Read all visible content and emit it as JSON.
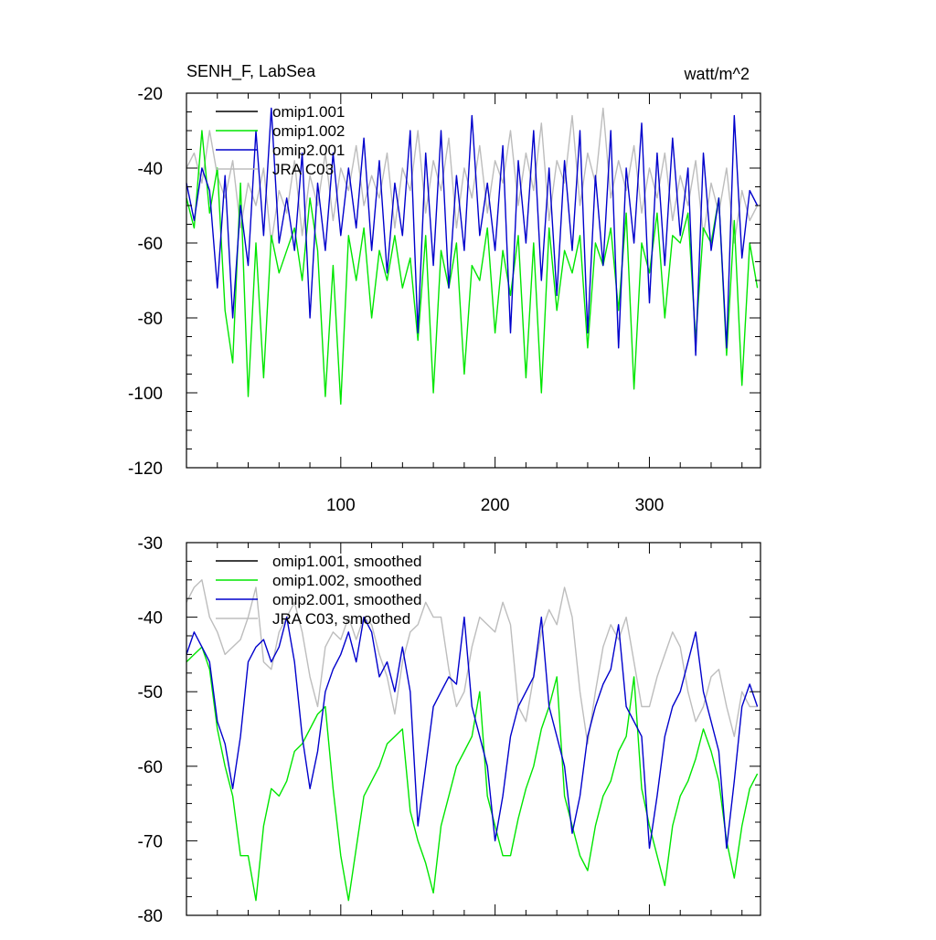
{
  "figure": {
    "title_left": "SENH_F, LabSea",
    "title_right": "watt/m^2"
  },
  "colors": {
    "omip1_001": "#000000",
    "omip1_002": "#00e600",
    "omip2_001": "#0000cc",
    "jra_c03": "#bdbdbd"
  },
  "chart_data": [
    {
      "type": "line",
      "panel": "top",
      "title": "SENH_F, LabSea",
      "units": "watt/m^2",
      "xlabel": "",
      "ylabel": "",
      "xlim": [
        0,
        372
      ],
      "ylim": [
        -120,
        -20
      ],
      "xticks": [
        100,
        200,
        300
      ],
      "xtick_labels": [
        "100",
        "200",
        "300"
      ],
      "yticks": [
        -20,
        -40,
        -60,
        -80,
        -100,
        -120
      ],
      "ytick_labels": [
        "-20",
        "-40",
        "-60",
        "-80",
        "-100",
        "-120"
      ],
      "grid": false,
      "legend_position": "top-left",
      "series": [
        {
          "name": "omip1.001",
          "color_key": "omip1_001",
          "x": [],
          "values": []
        },
        {
          "name": "omip1.002",
          "color_key": "omip1_002",
          "x": [
            0,
            5,
            10,
            15,
            20,
            25,
            30,
            35,
            40,
            45,
            50,
            55,
            60,
            65,
            70,
            75,
            80,
            85,
            90,
            95,
            100,
            105,
            110,
            115,
            120,
            125,
            130,
            135,
            140,
            145,
            150,
            155,
            160,
            165,
            170,
            175,
            180,
            185,
            190,
            195,
            200,
            205,
            210,
            215,
            220,
            225,
            230,
            235,
            240,
            245,
            250,
            255,
            260,
            265,
            270,
            275,
            280,
            285,
            290,
            295,
            300,
            305,
            310,
            315,
            320,
            325,
            330,
            335,
            340,
            345,
            350,
            355,
            360,
            365,
            370
          ],
          "values": [
            -48,
            -56,
            -30,
            -52,
            -40,
            -78,
            -92,
            -44,
            -101,
            -60,
            -96,
            -58,
            -68,
            -62,
            -56,
            -70,
            -48,
            -62,
            -101,
            -66,
            -103,
            -58,
            -70,
            -56,
            -80,
            -62,
            -70,
            -58,
            -72,
            -64,
            -86,
            -58,
            -100,
            -62,
            -72,
            -60,
            -95,
            -66,
            -70,
            -56,
            -84,
            -62,
            -74,
            -58,
            -96,
            -60,
            -100,
            -56,
            -78,
            -62,
            -68,
            -58,
            -88,
            -60,
            -66,
            -56,
            -78,
            -52,
            -99,
            -60,
            -68,
            -52,
            -80,
            -58,
            -60,
            -52,
            -86,
            -56,
            -60,
            -48,
            -90,
            -54,
            -98,
            -60,
            -72
          ]
        },
        {
          "name": "omip2.001",
          "color_key": "omip2_001",
          "x": [
            0,
            5,
            10,
            15,
            20,
            25,
            30,
            35,
            40,
            45,
            50,
            55,
            60,
            65,
            70,
            75,
            80,
            85,
            90,
            95,
            100,
            105,
            110,
            115,
            120,
            125,
            130,
            135,
            140,
            145,
            150,
            155,
            160,
            165,
            170,
            175,
            180,
            185,
            190,
            195,
            200,
            205,
            210,
            215,
            220,
            225,
            230,
            235,
            240,
            245,
            250,
            255,
            260,
            265,
            270,
            275,
            280,
            285,
            290,
            295,
            300,
            305,
            310,
            315,
            320,
            325,
            330,
            335,
            340,
            345,
            350,
            355,
            360,
            365,
            370
          ],
          "values": [
            -44,
            -54,
            -40,
            -46,
            -72,
            -42,
            -80,
            -50,
            -66,
            -30,
            -58,
            -24,
            -60,
            -48,
            -62,
            -36,
            -80,
            -44,
            -62,
            -36,
            -58,
            -40,
            -56,
            -32,
            -62,
            -38,
            -68,
            -44,
            -58,
            -30,
            -84,
            -36,
            -66,
            -30,
            -72,
            -42,
            -62,
            -26,
            -58,
            -44,
            -62,
            -34,
            -84,
            -38,
            -60,
            -30,
            -70,
            -40,
            -74,
            -38,
            -62,
            -30,
            -84,
            -42,
            -66,
            -30,
            -88,
            -40,
            -60,
            -28,
            -76,
            -36,
            -66,
            -32,
            -58,
            -40,
            -90,
            -36,
            -62,
            -48,
            -88,
            -26,
            -64,
            -46,
            -50
          ]
        },
        {
          "name": "JRA C03",
          "color_key": "jra_c03",
          "x": [
            0,
            5,
            10,
            15,
            20,
            25,
            30,
            35,
            40,
            45,
            50,
            55,
            60,
            65,
            70,
            75,
            80,
            85,
            90,
            95,
            100,
            105,
            110,
            115,
            120,
            125,
            130,
            135,
            140,
            145,
            150,
            155,
            160,
            165,
            170,
            175,
            180,
            185,
            190,
            195,
            200,
            205,
            210,
            215,
            220,
            225,
            230,
            235,
            240,
            245,
            250,
            255,
            260,
            265,
            270,
            275,
            280,
            285,
            290,
            295,
            300,
            305,
            310,
            315,
            320,
            325,
            330,
            335,
            340,
            345,
            350,
            355,
            360,
            365,
            370
          ],
          "values": [
            -40,
            -36,
            -44,
            -30,
            -42,
            -48,
            -38,
            -56,
            -44,
            -50,
            -40,
            -60,
            -46,
            -52,
            -38,
            -58,
            -42,
            -50,
            -36,
            -54,
            -40,
            -46,
            -34,
            -50,
            -42,
            -48,
            -36,
            -56,
            -40,
            -46,
            -30,
            -52,
            -38,
            -46,
            -32,
            -56,
            -40,
            -48,
            -34,
            -52,
            -38,
            -44,
            -30,
            -50,
            -36,
            -46,
            -28,
            -54,
            -38,
            -44,
            -26,
            -50,
            -36,
            -44,
            -24,
            -48,
            -38,
            -46,
            -34,
            -52,
            -40,
            -48,
            -36,
            -54,
            -42,
            -50,
            -38,
            -58,
            -44,
            -52,
            -40,
            -60,
            -46,
            -54,
            -50
          ]
        }
      ]
    },
    {
      "type": "line",
      "panel": "bottom",
      "title": "",
      "xlabel": "",
      "ylabel": "",
      "xlim": [
        0,
        372
      ],
      "ylim": [
        -80,
        -30
      ],
      "xticks": [
        100,
        200,
        300
      ],
      "xtick_labels": [],
      "yticks": [
        -30,
        -40,
        -50,
        -60,
        -70,
        -80
      ],
      "ytick_labels": [
        "-30",
        "-40",
        "-50",
        "-60",
        "-70",
        "-80"
      ],
      "grid": false,
      "legend_position": "top-left",
      "series": [
        {
          "name": "omip1.001, smoothed",
          "color_key": "omip1_001",
          "x": [],
          "values": []
        },
        {
          "name": "omip1.002, smoothed",
          "color_key": "omip1_002",
          "x": [
            0,
            5,
            10,
            15,
            20,
            25,
            30,
            35,
            40,
            45,
            50,
            55,
            60,
            65,
            70,
            75,
            80,
            85,
            90,
            95,
            100,
            105,
            110,
            115,
            120,
            125,
            130,
            135,
            140,
            145,
            150,
            155,
            160,
            165,
            170,
            175,
            180,
            185,
            190,
            195,
            200,
            205,
            210,
            215,
            220,
            225,
            230,
            235,
            240,
            245,
            250,
            255,
            260,
            265,
            270,
            275,
            280,
            285,
            290,
            295,
            300,
            305,
            310,
            315,
            320,
            325,
            330,
            335,
            340,
            345,
            350,
            355,
            360,
            365,
            370
          ],
          "values": [
            -46,
            -45,
            -44,
            -47,
            -55,
            -60,
            -64,
            -72,
            -72,
            -78,
            -68,
            -63,
            -64,
            -62,
            -58,
            -57,
            -55,
            -53,
            -52,
            -63,
            -72,
            -78,
            -71,
            -64,
            -62,
            -60,
            -57,
            -56,
            -55,
            -66,
            -70,
            -73,
            -77,
            -68,
            -64,
            -60,
            -58,
            -56,
            -50,
            -64,
            -68,
            -72,
            -72,
            -67,
            -63,
            -60,
            -55,
            -52,
            -48,
            -64,
            -68,
            -72,
            -74,
            -68,
            -64,
            -62,
            -58,
            -56,
            -48,
            -63,
            -68,
            -72,
            -76,
            -68,
            -64,
            -62,
            -59,
            -55,
            -58,
            -62,
            -70,
            -75,
            -68,
            -63,
            -61
          ]
        },
        {
          "name": "omip2.001, smoothed",
          "color_key": "omip2_001",
          "x": [
            0,
            5,
            10,
            15,
            20,
            25,
            30,
            35,
            40,
            45,
            50,
            55,
            60,
            65,
            70,
            75,
            80,
            85,
            90,
            95,
            100,
            105,
            110,
            115,
            120,
            125,
            130,
            135,
            140,
            145,
            150,
            155,
            160,
            165,
            170,
            175,
            180,
            185,
            190,
            195,
            200,
            205,
            210,
            215,
            220,
            225,
            230,
            235,
            240,
            245,
            250,
            255,
            260,
            265,
            270,
            275,
            280,
            285,
            290,
            295,
            300,
            305,
            310,
            315,
            320,
            325,
            330,
            335,
            340,
            345,
            350,
            355,
            360,
            365,
            370
          ],
          "values": [
            -45,
            -42,
            -44,
            -46,
            -54,
            -57,
            -63,
            -56,
            -46,
            -44,
            -43,
            -46,
            -44,
            -40,
            -46,
            -56,
            -63,
            -58,
            -50,
            -47,
            -45,
            -42,
            -46,
            -40,
            -42,
            -48,
            -46,
            -50,
            -44,
            -50,
            -68,
            -60,
            -52,
            -50,
            -48,
            -49,
            -40,
            -52,
            -56,
            -60,
            -70,
            -64,
            -56,
            -52,
            -50,
            -48,
            -40,
            -52,
            -56,
            -60,
            -69,
            -64,
            -56,
            -52,
            -49,
            -47,
            -41,
            -52,
            -54,
            -56,
            -71,
            -64,
            -56,
            -52,
            -50,
            -46,
            -42,
            -50,
            -54,
            -58,
            -71,
            -62,
            -52,
            -49,
            -52
          ]
        },
        {
          "name": "JRA C03, smoothed",
          "color_key": "jra_c03",
          "x": [
            0,
            5,
            10,
            15,
            20,
            25,
            30,
            35,
            40,
            45,
            50,
            55,
            60,
            65,
            70,
            75,
            80,
            85,
            90,
            95,
            100,
            105,
            110,
            115,
            120,
            125,
            130,
            135,
            140,
            145,
            150,
            155,
            160,
            165,
            170,
            175,
            180,
            185,
            190,
            195,
            200,
            205,
            210,
            215,
            220,
            225,
            230,
            235,
            240,
            245,
            250,
            255,
            260,
            265,
            270,
            275,
            280,
            285,
            290,
            295,
            300,
            305,
            310,
            315,
            320,
            325,
            330,
            335,
            340,
            345,
            350,
            355,
            360,
            365,
            370
          ],
          "values": [
            -38,
            -36,
            -35,
            -40,
            -42,
            -45,
            -44,
            -43,
            -40,
            -36,
            -46,
            -47,
            -42,
            -40,
            -38,
            -42,
            -48,
            -52,
            -44,
            -42,
            -43,
            -40,
            -43,
            -40,
            -41,
            -45,
            -48,
            -53,
            -46,
            -42,
            -41,
            -38,
            -40,
            -40,
            -47,
            -52,
            -50,
            -44,
            -40,
            -41,
            -42,
            -38,
            -41,
            -52,
            -54,
            -48,
            -42,
            -39,
            -41,
            -36,
            -40,
            -50,
            -57,
            -50,
            -44,
            -41,
            -43,
            -40,
            -46,
            -52,
            -52,
            -48,
            -45,
            -42,
            -44,
            -50,
            -54,
            -52,
            -48,
            -47,
            -52,
            -56,
            -50,
            -52,
            -52
          ]
        }
      ]
    }
  ]
}
